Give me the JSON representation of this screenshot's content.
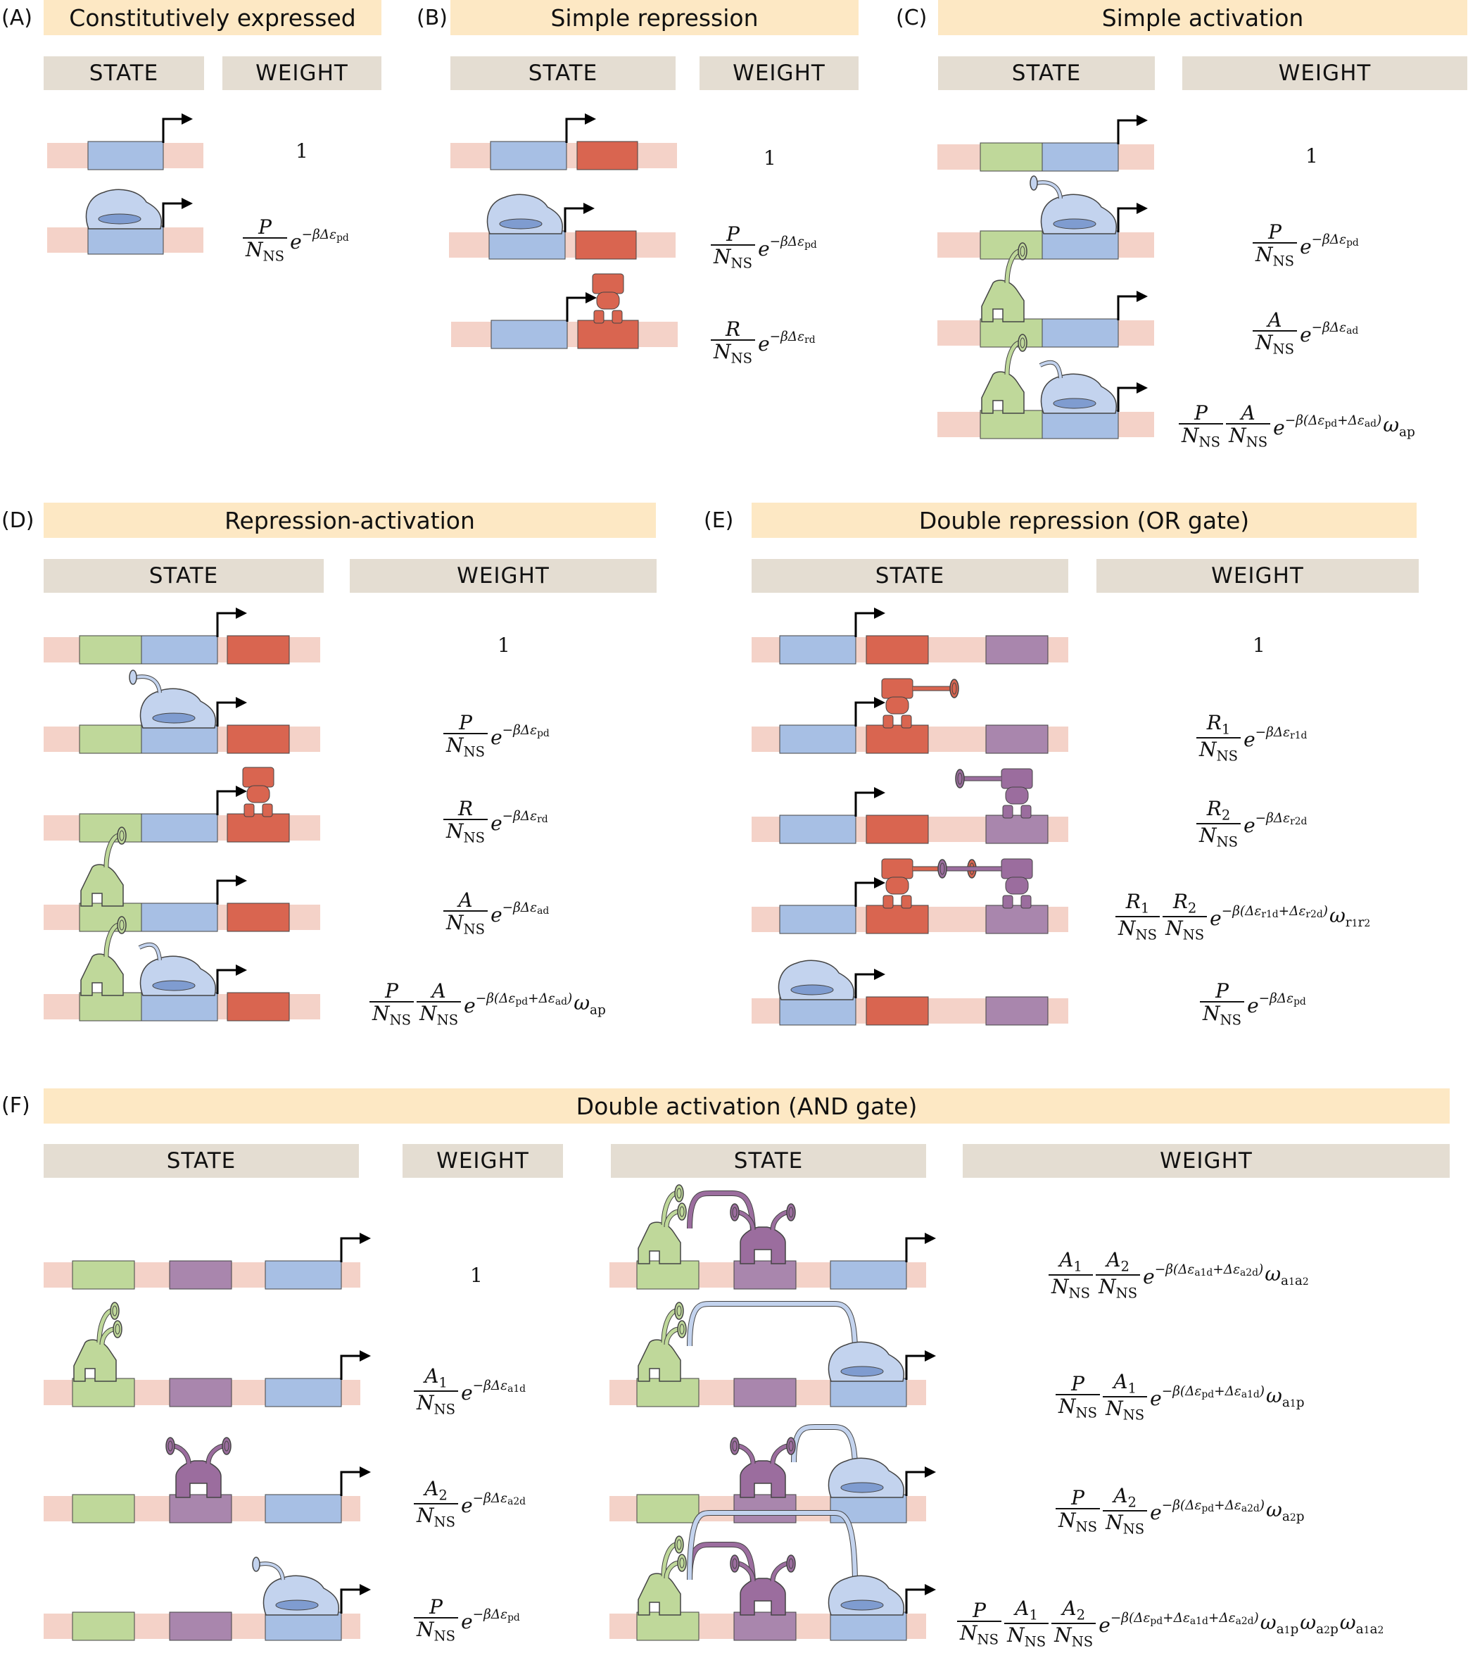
{
  "panels": [
    {
      "id": "A",
      "label": "(A)",
      "title": "Constitutively expressed"
    },
    {
      "id": "B",
      "label": "(B)",
      "title": "Simple repression"
    },
    {
      "id": "C",
      "label": "(C)",
      "title": "Simple activation"
    },
    {
      "id": "D",
      "label": "(D)",
      "title": "Repression-activation"
    },
    {
      "id": "E",
      "label": "(E)",
      "title": "Double repression (OR gate)"
    },
    {
      "id": "F",
      "label": "(F)",
      "title": "Double activation (AND gate)"
    }
  ],
  "headers": {
    "state": "STATE",
    "weight": "WEIGHT"
  },
  "symbols": {
    "one": "1",
    "e": "e",
    "N": "N",
    "NS": "NS",
    "P": "P",
    "R": "R",
    "A": "A",
    "R1": "R",
    "R2": "R",
    "A1": "A",
    "A2": "A",
    "sub1": "1",
    "sub2": "2",
    "omega": "ω",
    "exp_pd": "−βΔε_pd",
    "exp_rd": "−βΔε_rd",
    "exp_ad": "−βΔε_ad",
    "exp_r1d": "−βΔε_r1d",
    "exp_r2d": "−βΔε_r2d",
    "exp_a1d": "−βΔε_a1d",
    "exp_a2d": "−βΔε_a2d",
    "exp_pd_ad": "−β(Δε_pd+Δε_ad)",
    "exp_r1d_r2d": "−β(Δε_r1d+Δε_r2d)",
    "exp_a1d_a2d": "−β(Δε_a1d+Δε_a2d)",
    "exp_pd_a1d": "−β(Δε_pd+Δε_a1d)",
    "exp_pd_a2d": "−β(Δε_pd+Δε_a2d)",
    "exp_pd_a1d_a2d": "−β(Δε_pd+Δε_a1d+Δε_a2d)",
    "w_ap": "ap",
    "w_r1r2": "r1r2",
    "w_a1a2": "a1a2",
    "w_a1p": "a1p",
    "w_a2p": "a2p"
  },
  "colors": {
    "dna": "#f4d2c8",
    "promoter": "#a7bfe4",
    "repressor_site": "#d96550",
    "activator_site": "#bfd89a",
    "second_site": "#a986ad",
    "polymerase": "#c3d3ee",
    "repressor": "#d96550",
    "activator": "#bfd89a",
    "second_activator": "#9b6d9e",
    "outline": "#444444",
    "title_bg": "#fde8c4",
    "header_bg": "#e4ddd2"
  }
}
